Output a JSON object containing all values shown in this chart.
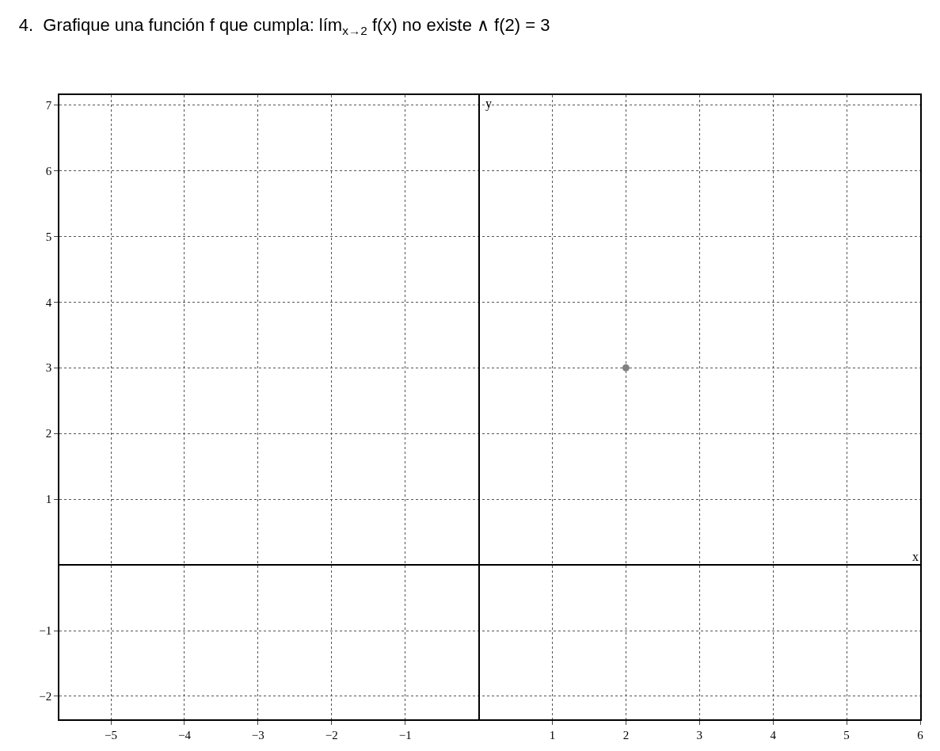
{
  "chart_data": {
    "type": "scatter",
    "title": "4.  Grafique una función f que cumpla: lím$_{x→2}$ f(x) no existe ∧ f(2) = 3",
    "xlabel": "x",
    "ylabel": "y",
    "x": [
      2
    ],
    "values": [
      3
    ],
    "color": "#808080",
    "marker": "circle",
    "xlim": [
      -5.7,
      6
    ],
    "ylim": [
      -2.35,
      7.15
    ],
    "xticks": [
      -5,
      -4,
      -3,
      -2,
      -1,
      1,
      2,
      3,
      4,
      5,
      6
    ],
    "yticks": [
      -2,
      -1,
      1,
      2,
      3,
      4,
      5,
      6,
      7
    ],
    "grid": true,
    "line_style": "dotted"
  }
}
